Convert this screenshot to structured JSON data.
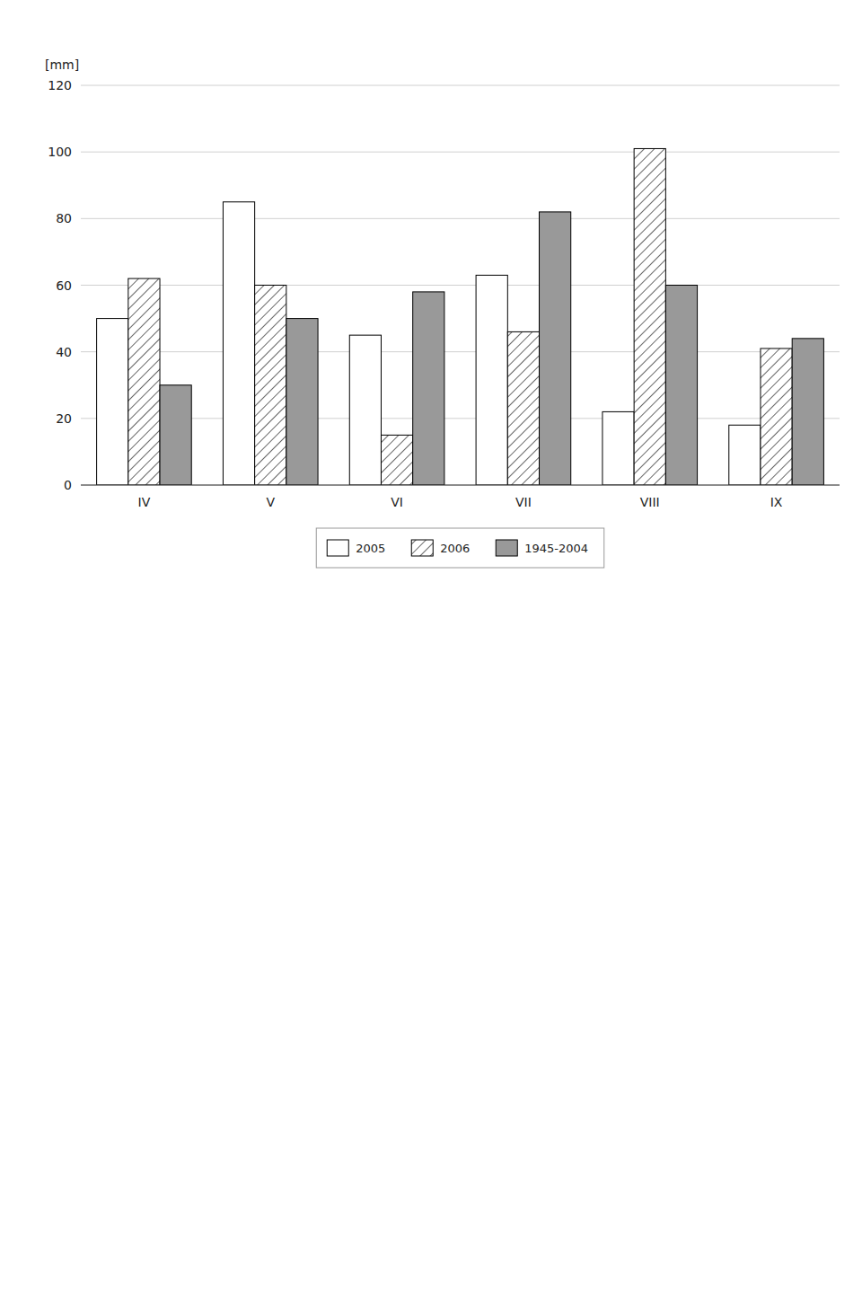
{
  "chart_data": {
    "type": "bar",
    "ylabel": "[mm]",
    "categories": [
      "IV",
      "V",
      "VI",
      "VII",
      "VIII",
      "IX"
    ],
    "series": [
      {
        "name": "2005",
        "color": "#ffffff",
        "values": [
          50,
          85,
          45,
          63,
          22,
          18
        ]
      },
      {
        "name": "2006",
        "color": "#ffffff",
        "values": [
          62,
          60,
          15,
          46,
          101,
          41
        ]
      },
      {
        "name": "1945-2004",
        "color": "#999999",
        "values": [
          30,
          50,
          58,
          82,
          60,
          44
        ]
      }
    ],
    "ylim": [
      0,
      120
    ],
    "yticks": [
      0,
      20,
      40,
      60,
      80,
      100,
      120
    ],
    "grid": true,
    "legend": "bottom"
  }
}
